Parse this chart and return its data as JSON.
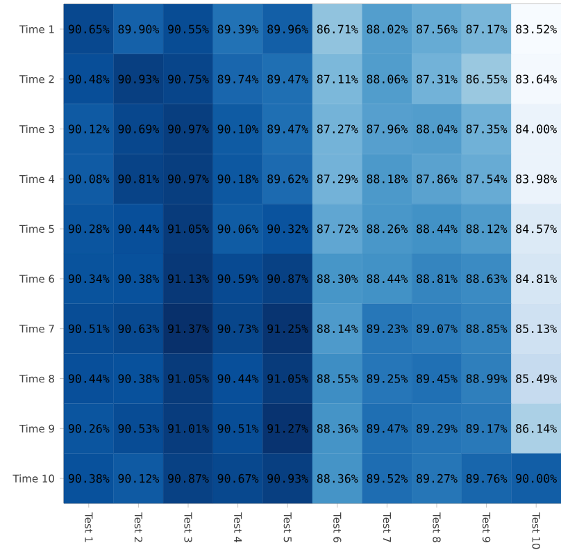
{
  "chart_data": {
    "type": "heatmap",
    "categories": [
      "Test 1",
      "Test 2",
      "Test 3",
      "Test 4",
      "Test 5",
      "Test 6",
      "Test 7",
      "Test 8",
      "Test 9",
      "Test 10"
    ],
    "y_categories": [
      "Time 1",
      "Time 2",
      "Time 3",
      "Time 4",
      "Time 5",
      "Time 6",
      "Time 7",
      "Time 8",
      "Time 9",
      "Time 10"
    ],
    "cells": [
      [
        90.65,
        89.9,
        90.55,
        89.39,
        89.96,
        86.71,
        88.02,
        87.56,
        87.17,
        83.52
      ],
      [
        90.48,
        90.93,
        90.75,
        89.74,
        89.47,
        87.11,
        88.06,
        87.31,
        86.55,
        83.64
      ],
      [
        90.12,
        90.69,
        90.97,
        90.1,
        89.47,
        87.27,
        87.96,
        88.04,
        87.35,
        84.0
      ],
      [
        90.08,
        90.81,
        90.97,
        90.18,
        89.62,
        87.29,
        88.18,
        87.86,
        87.54,
        83.98
      ],
      [
        90.28,
        90.44,
        91.05,
        90.06,
        90.32,
        87.72,
        88.26,
        88.44,
        88.12,
        84.57
      ],
      [
        90.34,
        90.38,
        91.13,
        90.59,
        90.87,
        88.3,
        88.44,
        88.81,
        88.63,
        84.81
      ],
      [
        90.51,
        90.63,
        91.37,
        90.73,
        91.25,
        88.14,
        89.23,
        89.07,
        88.85,
        85.13
      ],
      [
        90.44,
        90.38,
        91.05,
        90.44,
        91.05,
        88.55,
        89.25,
        89.45,
        88.99,
        85.49
      ],
      [
        90.26,
        90.53,
        91.01,
        90.51,
        91.27,
        88.36,
        89.47,
        89.29,
        89.17,
        86.14
      ],
      [
        90.38,
        90.12,
        90.87,
        90.67,
        90.93,
        88.36,
        89.52,
        89.27,
        89.76,
        90.0
      ]
    ],
    "cell_labels": [
      [
        "90.65%",
        "89.90%",
        "90.55%",
        "89.39%",
        "89.96%",
        "86.71%",
        "88.02%",
        "87.56%",
        "87.17%",
        "83.52%"
      ],
      [
        "90.48%",
        "90.93%",
        "90.75%",
        "89.74%",
        "89.47%",
        "87.11%",
        "88.06%",
        "87.31%",
        "86.55%",
        "83.64%"
      ],
      [
        "90.12%",
        "90.69%",
        "90.97%",
        "90.10%",
        "89.47%",
        "87.27%",
        "87.96%",
        "88.04%",
        "87.35%",
        "84.00%"
      ],
      [
        "90.08%",
        "90.81%",
        "90.97%",
        "90.18%",
        "89.62%",
        "87.29%",
        "88.18%",
        "87.86%",
        "87.54%",
        "83.98%"
      ],
      [
        "90.28%",
        "90.44%",
        "91.05%",
        "90.06%",
        "90.32%",
        "87.72%",
        "88.26%",
        "88.44%",
        "88.12%",
        "84.57%"
      ],
      [
        "90.34%",
        "90.38%",
        "91.13%",
        "90.59%",
        "90.87%",
        "88.30%",
        "88.44%",
        "88.81%",
        "88.63%",
        "84.81%"
      ],
      [
        "90.51%",
        "90.63%",
        "91.37%",
        "90.73%",
        "91.25%",
        "88.14%",
        "89.23%",
        "89.07%",
        "88.85%",
        "85.13%"
      ],
      [
        "90.44%",
        "90.38%",
        "91.05%",
        "90.44%",
        "91.05%",
        "88.55%",
        "89.25%",
        "89.45%",
        "88.99%",
        "85.49%"
      ],
      [
        "90.26%",
        "90.53%",
        "91.01%",
        "90.51%",
        "91.27%",
        "88.36%",
        "89.47%",
        "89.29%",
        "89.17%",
        "86.14%"
      ],
      [
        "90.38%",
        "90.12%",
        "90.87%",
        "90.67%",
        "90.93%",
        "88.36%",
        "89.52%",
        "89.27%",
        "89.76%",
        "90.00%"
      ]
    ]
  }
}
